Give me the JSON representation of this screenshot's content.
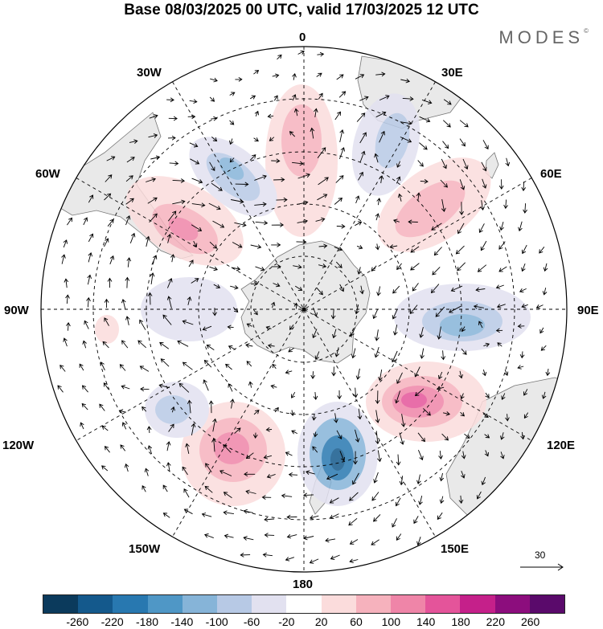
{
  "title": "Base 08/03/2025 00 UTC, valid 17/03/2025 12 UTC",
  "brand": "MODES",
  "brand_mark": "©",
  "longitude_labels": {
    "top": "0",
    "e30": "30E",
    "e60": "60E",
    "e90": "90E",
    "e120": "120E",
    "e150": "150E",
    "bottom": "180",
    "w150": "150W",
    "w120": "120W",
    "w90": "90W",
    "w60": "60W",
    "w30": "30W"
  },
  "vector_scale_label": "30",
  "colorbar": {
    "tick_labels": [
      "-260",
      "-220",
      "-180",
      "-140",
      "-100",
      "-60",
      "-20",
      "20",
      "60",
      "100",
      "140",
      "180",
      "220",
      "260"
    ],
    "colors": [
      "#0b3a5c",
      "#14598c",
      "#2878b0",
      "#4f97c6",
      "#86b4d8",
      "#b7c9e5",
      "#e2e1f0",
      "#ffffff",
      "#fbdcdc",
      "#f6b2bd",
      "#ef85a8",
      "#e4549a",
      "#c5208a",
      "#8c0d7d",
      "#5a0a6b"
    ]
  },
  "colors": {
    "land": "#e9e9e9",
    "ocean": "#ffffff",
    "negative": "#3a7fbf",
    "positive": "#e4549a"
  }
}
